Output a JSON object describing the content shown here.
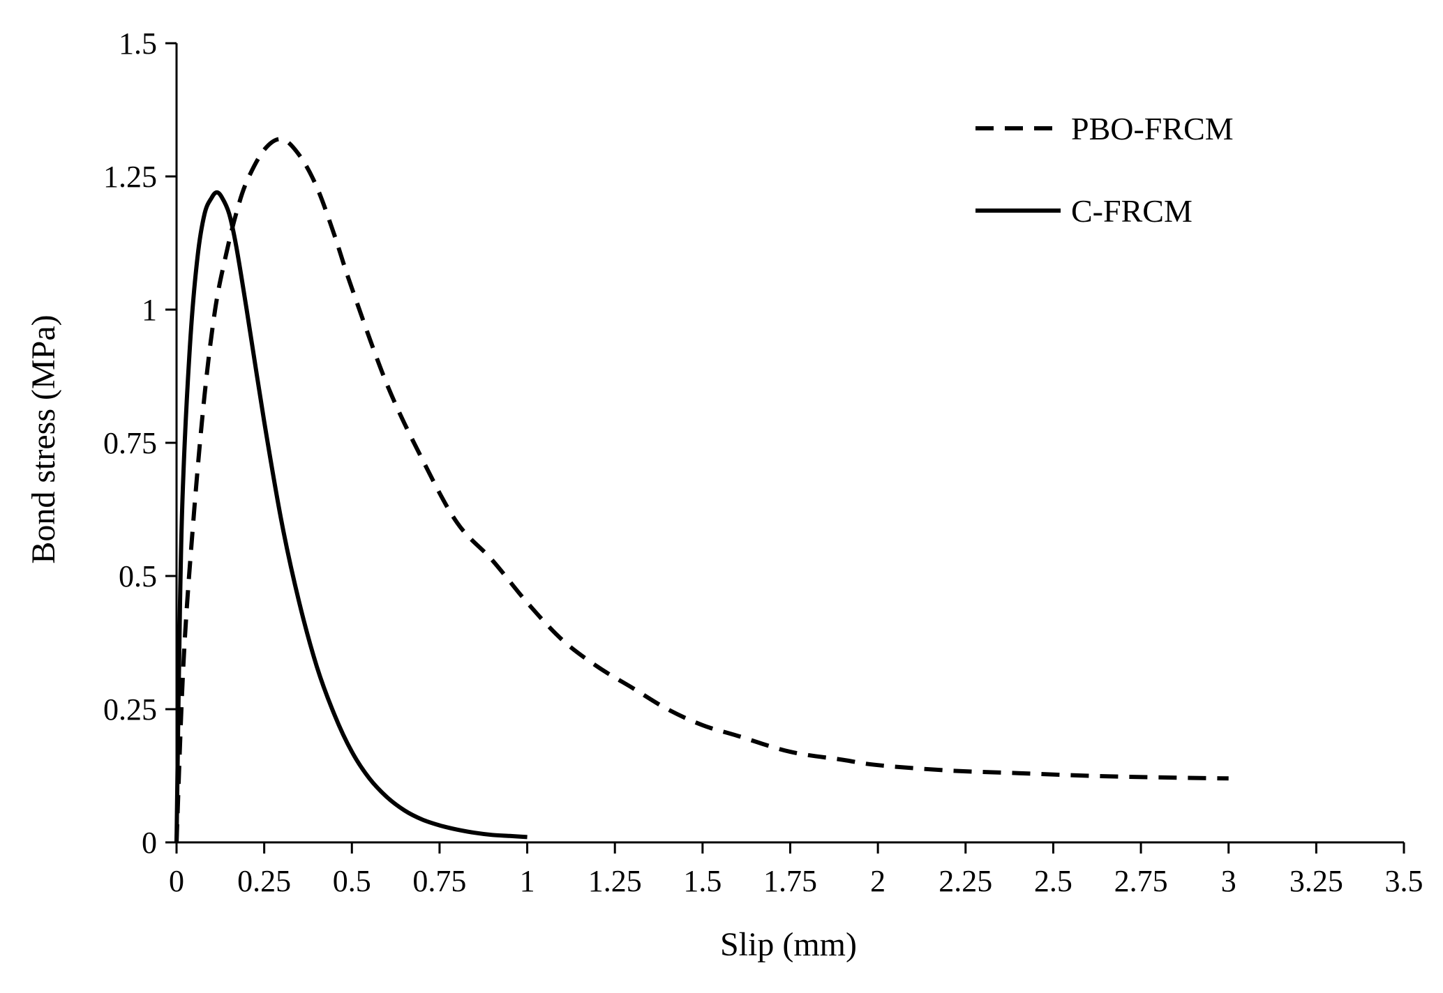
{
  "chart_data": {
    "type": "line",
    "title": "",
    "xlabel": "Slip (mm)",
    "ylabel": "Bond stress (MPa)",
    "xlim": [
      0,
      3.5
    ],
    "ylim": [
      0,
      1.5
    ],
    "xticks": [
      0,
      0.25,
      0.5,
      0.75,
      1,
      1.25,
      1.5,
      1.75,
      2,
      2.25,
      2.5,
      2.75,
      3,
      3.25,
      3.5
    ],
    "xtick_labels": [
      "0",
      "0.25",
      "0.5",
      "0.75",
      "1",
      "1.25",
      "1.5",
      "1.75",
      "2",
      "2.25",
      "2.5",
      "2.75",
      "3",
      "3.25",
      "3.5"
    ],
    "yticks": [
      0,
      0.25,
      0.5,
      0.75,
      1,
      1.25,
      1.5
    ],
    "ytick_labels": [
      "0",
      "0.25",
      "0.5",
      "0.75",
      "1",
      "1.25",
      "1.5"
    ],
    "grid": false,
    "legend_position": "top-right",
    "series": [
      {
        "name": "PBO-FRCM",
        "line_style": "dashed",
        "color": "#000000",
        "x": [
          0,
          0.02,
          0.05,
          0.08,
          0.11,
          0.14,
          0.17,
          0.2,
          0.25,
          0.3,
          0.35,
          0.4,
          0.45,
          0.5,
          0.6,
          0.7,
          0.8,
          0.9,
          1.0,
          1.1,
          1.2,
          1.3,
          1.4,
          1.5,
          1.6,
          1.75,
          1.9,
          2.0,
          2.2,
          2.4,
          2.6,
          2.8,
          3.0
        ],
        "y": [
          0,
          0.34,
          0.62,
          0.84,
          1.0,
          1.1,
          1.18,
          1.24,
          1.3,
          1.32,
          1.29,
          1.23,
          1.14,
          1.04,
          0.86,
          0.72,
          0.6,
          0.53,
          0.45,
          0.38,
          0.33,
          0.29,
          0.25,
          0.22,
          0.2,
          0.17,
          0.155,
          0.145,
          0.135,
          0.13,
          0.125,
          0.122,
          0.12
        ]
      },
      {
        "name": "C-FRCM",
        "line_style": "solid",
        "color": "#000000",
        "x": [
          0,
          0.01,
          0.02,
          0.04,
          0.06,
          0.08,
          0.1,
          0.115,
          0.13,
          0.15,
          0.17,
          0.2,
          0.25,
          0.3,
          0.35,
          0.4,
          0.45,
          0.5,
          0.55,
          0.6,
          0.65,
          0.7,
          0.75,
          0.8,
          0.85,
          0.9,
          0.95,
          1.0
        ],
        "y": [
          0,
          0.45,
          0.7,
          0.95,
          1.1,
          1.18,
          1.21,
          1.22,
          1.21,
          1.18,
          1.12,
          1.0,
          0.79,
          0.6,
          0.45,
          0.33,
          0.24,
          0.17,
          0.12,
          0.085,
          0.06,
          0.043,
          0.032,
          0.024,
          0.018,
          0.014,
          0.012,
          0.01
        ]
      }
    ]
  }
}
